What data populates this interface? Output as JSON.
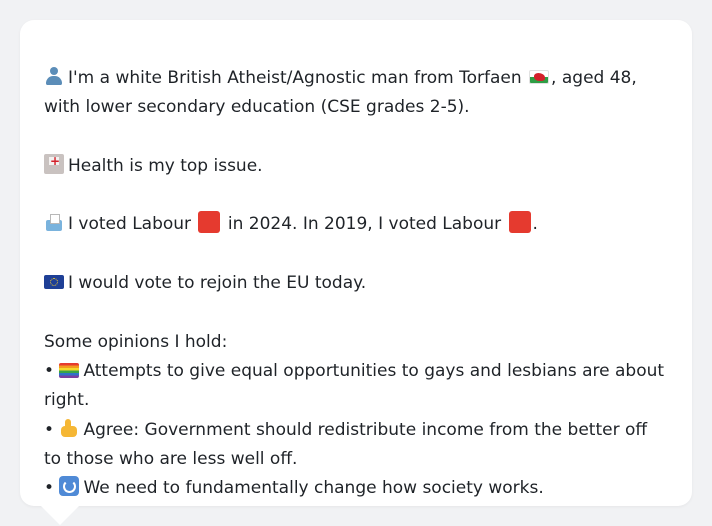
{
  "profile": {
    "intro_pre": "I'm a white British Atheist/Agnostic man from Torfaen",
    "intro_post": ", aged 48, with lower secondary education (CSE grades 2-5).",
    "health": "Health is my top issue.",
    "vote_a": "I voted Labour",
    "vote_b": "in 2024. In 2019, I voted Labour",
    "vote_c": ".",
    "eu": "I would vote to rejoin the EU today.",
    "opinions_heading": "Some opinions I hold:",
    "opinions": [
      "Attempts to give equal opportunities to gays and lesbians are about right.",
      "Agree: Government should redistribute income from the better off to those who are less well off.",
      "We need to fundamentally change how society works."
    ],
    "bullet": "•"
  },
  "icons": {
    "person": "person-icon",
    "region_flag": "wales-flag-icon",
    "health": "hospital-icon",
    "ballot": "ballot-box-icon",
    "party": "red-square-icon",
    "eu": "eu-flag-icon",
    "opinion_1": "rainbow-flag-icon",
    "opinion_2": "thumbs-up-icon",
    "opinion_3": "cycle-arrows-icon"
  },
  "colors": {
    "labour_red": "#e53a2f",
    "card_bg": "#ffffff",
    "page_bg": "#f1f2f4"
  }
}
